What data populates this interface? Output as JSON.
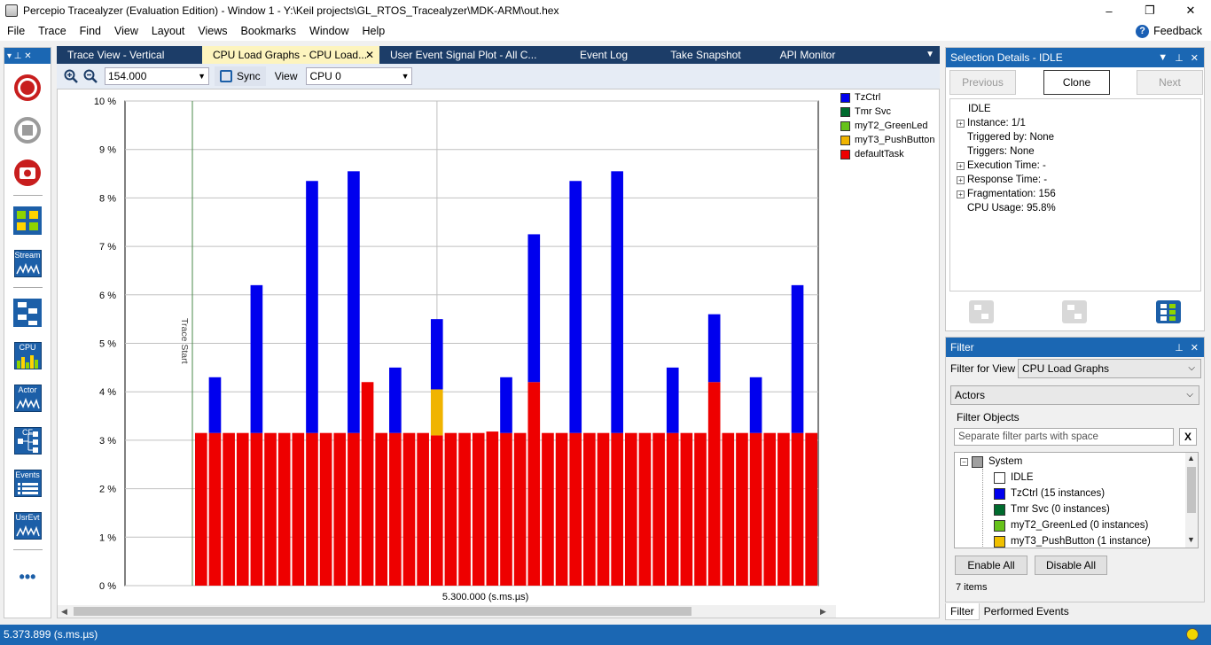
{
  "window": {
    "title": "Percepio Tracealyzer (Evaluation Edition) - Window 1 - Y:\\Keil projects\\GL_RTOS_Tracealyzer\\MDK-ARM\\out.hex",
    "minimize": "–",
    "maximize": "❐",
    "close": "✕"
  },
  "menu": {
    "items": [
      "File",
      "Trace",
      "Find",
      "View",
      "Layout",
      "Views",
      "Bookmarks",
      "Window",
      "Help"
    ],
    "feedback": "Feedback"
  },
  "left_toolbar": {
    "pin": "▾ ⊥ ✕",
    "stream_label": "Stream",
    "cpu_label": "CPU",
    "actor_label": "Actor",
    "cf_label": "CF",
    "events_label": "Events",
    "usrevt_label": "UsrEvt",
    "more": "•••"
  },
  "tabs": [
    {
      "label": "Trace View - Vertical",
      "active": false
    },
    {
      "label": "CPU Load Graphs - CPU Load...",
      "active": true
    },
    {
      "label": "User Event Signal Plot - All C...",
      "active": false
    },
    {
      "label": "Event Log",
      "active": false
    },
    {
      "label": "Take Snapshot",
      "active": false
    },
    {
      "label": "API Monitor",
      "active": false
    }
  ],
  "tab_close": "✕",
  "tab_menu": "▼",
  "toolbar": {
    "zoom_value": "154.000",
    "sync_label": "Sync",
    "view_label": "View",
    "cpu_value": "CPU 0"
  },
  "chart_data": {
    "type": "bar",
    "stacked": true,
    "ylim": [
      0,
      10
    ],
    "yticks": [
      "0 %",
      "1 %",
      "2 %",
      "3 %",
      "4 %",
      "5 %",
      "6 %",
      "7 %",
      "8 %",
      "9 %",
      "10 %"
    ],
    "xlabel": "5.300.000 (s.ms.µs)",
    "annotation": "Trace Start",
    "grid": true,
    "legend_position": "right",
    "series": [
      {
        "name": "TzCtrl",
        "color": "#0000ee"
      },
      {
        "name": "Tmr Svc",
        "color": "#006b2e"
      },
      {
        "name": "myT2_GreenLed",
        "color": "#66c21a"
      },
      {
        "name": "myT3_PushButton",
        "color": "#f0b400"
      },
      {
        "name": "defaultTask",
        "color": "#ee0000"
      }
    ],
    "bars": [
      {
        "defaultTask": 3.15
      },
      {
        "defaultTask": 3.15,
        "TzCtrl": 1.15
      },
      {
        "defaultTask": 3.15
      },
      {
        "defaultTask": 3.15
      },
      {
        "defaultTask": 3.15,
        "TzCtrl": 3.05
      },
      {
        "defaultTask": 3.15
      },
      {
        "defaultTask": 3.15
      },
      {
        "defaultTask": 3.15
      },
      {
        "defaultTask": 3.15,
        "TzCtrl": 5.2
      },
      {
        "defaultTask": 3.15
      },
      {
        "defaultTask": 3.15
      },
      {
        "defaultTask": 3.15,
        "TzCtrl": 5.4
      },
      {
        "defaultTask": 4.2
      },
      {
        "defaultTask": 3.15
      },
      {
        "defaultTask": 3.15,
        "TzCtrl": 1.35
      },
      {
        "defaultTask": 3.15
      },
      {
        "defaultTask": 3.15
      },
      {
        "defaultTask": 3.1,
        "myT3_PushButton": 0.95,
        "TzCtrl": 1.45
      },
      {
        "defaultTask": 3.15
      },
      {
        "defaultTask": 3.15
      },
      {
        "defaultTask": 3.15
      },
      {
        "defaultTask": 3.18
      },
      {
        "defaultTask": 3.15,
        "TzCtrl": 1.15
      },
      {
        "defaultTask": 3.15
      },
      {
        "defaultTask": 4.2,
        "TzCtrl": 3.05
      },
      {
        "defaultTask": 3.15
      },
      {
        "defaultTask": 3.15
      },
      {
        "defaultTask": 3.15,
        "TzCtrl": 5.2
      },
      {
        "defaultTask": 3.15
      },
      {
        "defaultTask": 3.15
      },
      {
        "defaultTask": 3.15,
        "TzCtrl": 5.4
      },
      {
        "defaultTask": 3.15
      },
      {
        "defaultTask": 3.15
      },
      {
        "defaultTask": 3.15
      },
      {
        "defaultTask": 3.15,
        "TzCtrl": 1.35
      },
      {
        "defaultTask": 3.15
      },
      {
        "defaultTask": 3.15
      },
      {
        "defaultTask": 4.2,
        "TzCtrl": 1.4
      },
      {
        "defaultTask": 3.15
      },
      {
        "defaultTask": 3.15
      },
      {
        "defaultTask": 3.15,
        "TzCtrl": 1.15
      },
      {
        "defaultTask": 3.15
      },
      {
        "defaultTask": 3.15
      },
      {
        "defaultTask": 3.15,
        "TzCtrl": 3.05
      },
      {
        "defaultTask": 3.15
      }
    ]
  },
  "selection": {
    "header": "Selection Details - IDLE",
    "previous": "Previous",
    "clone": "Clone",
    "next": "Next",
    "tree": [
      {
        "text": "IDLE",
        "expandable": false,
        "indent": 0
      },
      {
        "text": "Instance: 1/1",
        "expandable": true,
        "indent": 1
      },
      {
        "text": "Triggered by: None",
        "expandable": false,
        "indent": 1
      },
      {
        "text": "Triggers: None",
        "expandable": false,
        "indent": 1
      },
      {
        "text": "Execution Time: -",
        "expandable": true,
        "indent": 1
      },
      {
        "text": "Response Time: -",
        "expandable": true,
        "indent": 1
      },
      {
        "text": "Fragmentation: 156",
        "expandable": true,
        "indent": 1
      },
      {
        "text": "CPU Usage: 95.8%",
        "expandable": false,
        "indent": 1
      }
    ]
  },
  "filter": {
    "header": "Filter",
    "filter_for_view_label": "Filter for View",
    "filter_for_view_value": "CPU Load Graphs",
    "actors_value": "Actors",
    "filter_objects_label": "Filter Objects",
    "search_placeholder": "Separate filter parts with space",
    "clear": "X",
    "tree": [
      {
        "text": "System",
        "color": "#a0a0a0",
        "collapsible": true
      },
      {
        "text": "IDLE",
        "color": "#ffffff"
      },
      {
        "text": "TzCtrl (15 instances)",
        "color": "#0000ee"
      },
      {
        "text": "Tmr Svc (0 instances)",
        "color": "#006b2e"
      },
      {
        "text": "myT2_GreenLed (0 instances)",
        "color": "#66c21a"
      },
      {
        "text": "myT3_PushButton (1 instance)",
        "color": "#f0c000"
      }
    ],
    "enable_all": "Enable All",
    "disable_all": "Disable All",
    "items_count": "7 items"
  },
  "bottom_tabs": [
    "Filter",
    "Performed Events"
  ],
  "status": {
    "time": "5.373.899 (s.ms.µs)"
  }
}
